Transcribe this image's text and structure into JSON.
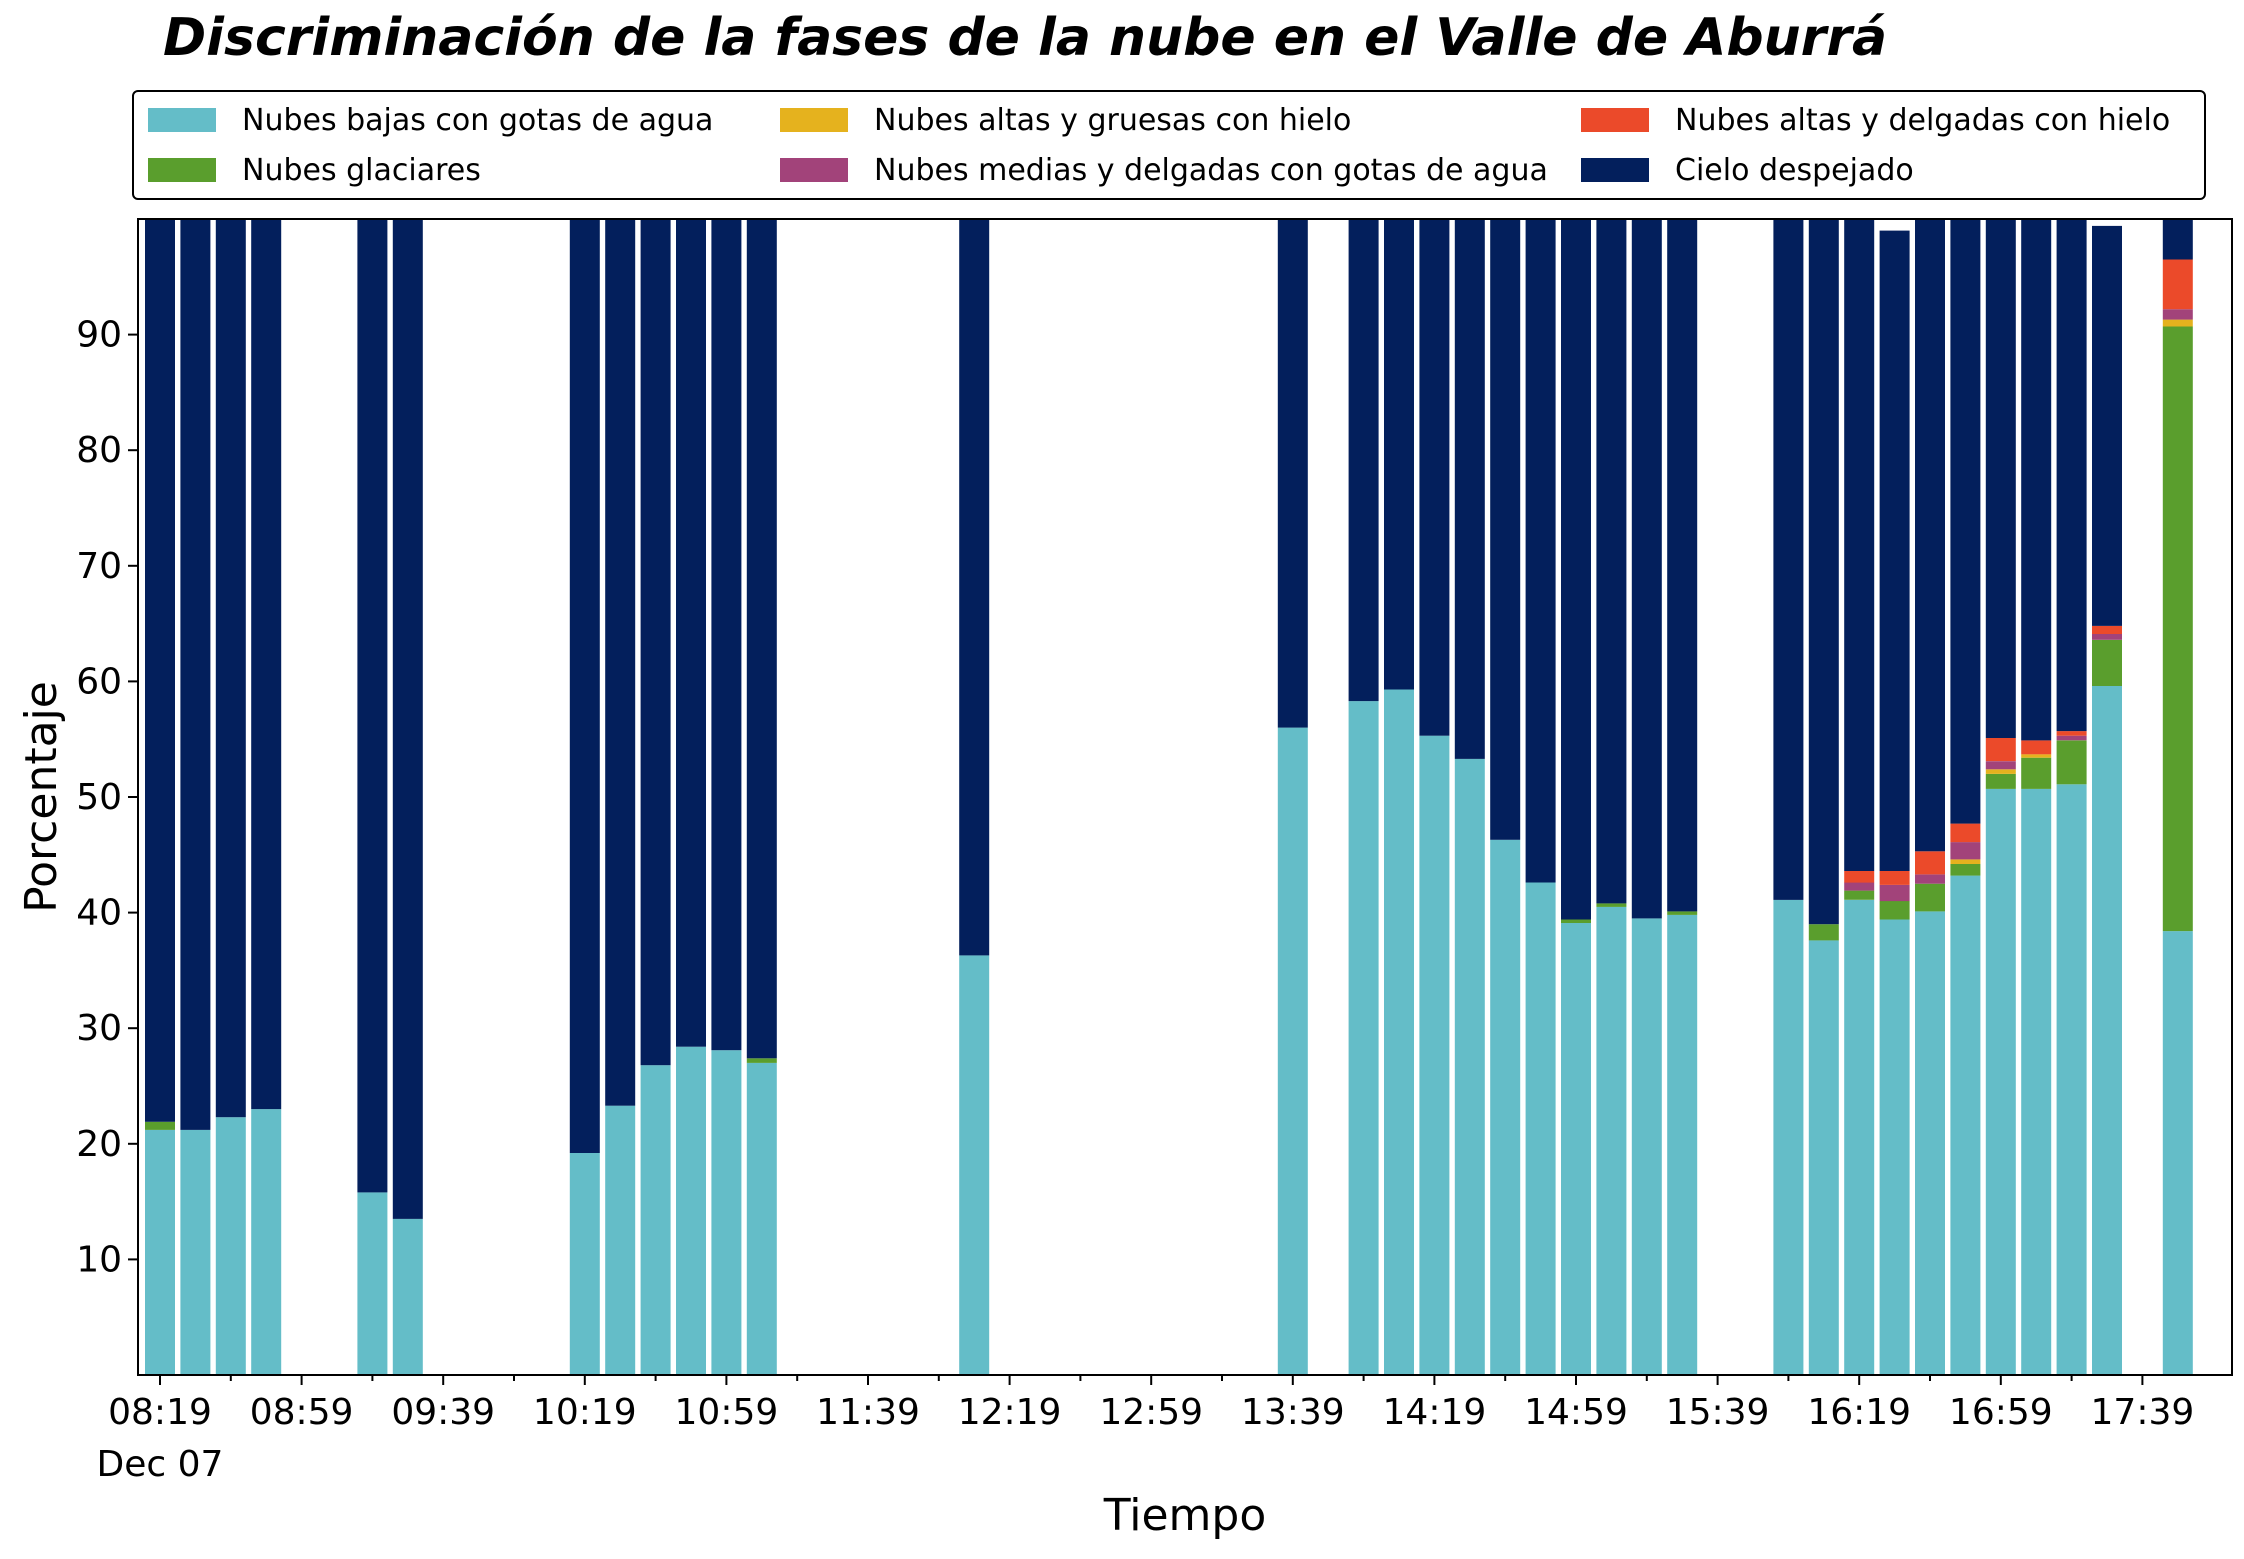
{
  "chart_data": {
    "type": "bar",
    "stacked": true,
    "title": "Discriminación de la fases de la nube en el Valle de Aburrá",
    "xlabel": "Tiempo",
    "ylabel": "Porcentaje",
    "ylim": [
      0,
      100
    ],
    "yticks": [
      10,
      20,
      30,
      40,
      50,
      60,
      70,
      80,
      90
    ],
    "x_major_ticks": [
      "08:19",
      "08:59",
      "09:39",
      "10:19",
      "10:59",
      "11:39",
      "12:19",
      "12:59",
      "13:39",
      "14:19",
      "14:59",
      "15:39",
      "16:19",
      "16:59",
      "17:39"
    ],
    "x_date_label": "Dec 07",
    "grid": false,
    "legend_position": "top",
    "slot_interval_minutes": 10,
    "slots": [
      "08:19",
      "08:29",
      "08:39",
      "08:49",
      "08:59",
      "09:09",
      "09:19",
      "09:29",
      "09:39",
      "09:49",
      "09:59",
      "10:09",
      "10:19",
      "10:29",
      "10:39",
      "10:49",
      "10:59",
      "11:09",
      "11:19",
      "11:29",
      "11:39",
      "11:49",
      "11:59",
      "12:09",
      "12:19",
      "12:29",
      "12:39",
      "12:49",
      "12:59",
      "13:09",
      "13:19",
      "13:29",
      "13:39",
      "13:49",
      "13:59",
      "14:09",
      "14:19",
      "14:29",
      "14:39",
      "14:49",
      "14:59",
      "15:09",
      "15:19",
      "15:29",
      "15:39",
      "15:49",
      "15:59",
      "16:09",
      "16:19",
      "16:29",
      "16:39",
      "16:49",
      "16:59",
      "17:09",
      "17:19",
      "17:29",
      "17:39",
      "17:49"
    ],
    "series": [
      {
        "name": "Nubes bajas con gotas de agua",
        "color": "#64BDC8",
        "values": [
          21.2,
          21.2,
          22.3,
          23.0,
          null,
          null,
          15.8,
          13.5,
          null,
          null,
          null,
          null,
          19.2,
          23.3,
          26.8,
          28.4,
          28.1,
          27.0,
          null,
          null,
          null,
          null,
          null,
          36.3,
          null,
          null,
          null,
          null,
          null,
          null,
          null,
          null,
          56.0,
          null,
          58.3,
          59.3,
          55.3,
          53.3,
          46.3,
          42.6,
          39.1,
          40.5,
          39.5,
          39.8,
          null,
          null,
          41.1,
          37.6,
          41.1,
          39.4,
          40.1,
          43.2,
          50.7,
          50.7,
          51.1,
          59.6,
          null,
          38.4
        ]
      },
      {
        "name": "Nubes glaciares",
        "color": "#5A9E2D",
        "values": [
          0.7,
          0,
          0,
          0,
          null,
          null,
          0,
          0,
          null,
          null,
          null,
          null,
          0,
          0,
          0,
          0,
          0,
          0.4,
          null,
          null,
          null,
          null,
          null,
          0,
          null,
          null,
          null,
          null,
          null,
          null,
          null,
          null,
          0,
          null,
          0,
          0,
          0,
          0,
          0,
          0,
          0.3,
          0.3,
          0,
          0.3,
          null,
          null,
          0,
          1.4,
          0.8,
          1.6,
          2.4,
          1.0,
          1.3,
          2.7,
          3.8,
          4.0,
          null,
          52.3
        ]
      },
      {
        "name": "Nubes altas y gruesas con hielo",
        "color": "#E5B21E",
        "values": [
          0,
          0,
          0,
          0,
          null,
          null,
          0,
          0,
          null,
          null,
          null,
          null,
          0,
          0,
          0,
          0,
          0,
          0,
          null,
          null,
          null,
          null,
          null,
          0,
          null,
          null,
          null,
          null,
          null,
          null,
          null,
          null,
          0,
          null,
          0,
          0,
          0,
          0,
          0,
          0,
          0,
          0,
          0,
          0,
          null,
          null,
          0,
          0,
          0,
          0,
          0,
          0.4,
          0.4,
          0.3,
          0,
          0,
          null,
          0.6
        ]
      },
      {
        "name": "Nubes medias y delgadas con gotas de agua",
        "color": "#A2437A",
        "values": [
          0,
          0,
          0,
          0,
          null,
          null,
          0,
          0,
          null,
          null,
          null,
          null,
          0,
          0,
          0,
          0,
          0,
          0,
          null,
          null,
          null,
          null,
          null,
          0,
          null,
          null,
          null,
          null,
          null,
          null,
          null,
          null,
          0,
          null,
          0,
          0,
          0,
          0,
          0,
          0,
          0,
          0,
          0,
          0,
          null,
          null,
          0,
          0,
          0.7,
          1.4,
          0.8,
          1.5,
          0.7,
          0,
          0.4,
          0.5,
          null,
          0.9
        ]
      },
      {
        "name": "Nubes altas y delgadas con hielo",
        "color": "#EB4A2A",
        "values": [
          0,
          0,
          0,
          0,
          null,
          null,
          0,
          0,
          null,
          null,
          null,
          null,
          0,
          0,
          0,
          0,
          0,
          0,
          null,
          null,
          null,
          null,
          null,
          0,
          null,
          null,
          null,
          null,
          null,
          null,
          null,
          null,
          0,
          null,
          0,
          0,
          0,
          0,
          0,
          0,
          0,
          0,
          0,
          0,
          null,
          null,
          0,
          0,
          1.0,
          1.2,
          2.0,
          1.6,
          2.0,
          1.2,
          0.4,
          0.7,
          null,
          4.3
        ]
      },
      {
        "name": "Cielo despejado",
        "color": "#031F5C",
        "values": [
          78.1,
          78.8,
          77.7,
          77.0,
          null,
          null,
          84.2,
          86.5,
          null,
          null,
          null,
          null,
          80.8,
          76.7,
          73.2,
          71.6,
          71.9,
          72.6,
          null,
          null,
          null,
          null,
          null,
          63.7,
          null,
          null,
          null,
          null,
          null,
          null,
          null,
          null,
          44.0,
          null,
          41.7,
          40.7,
          44.7,
          46.7,
          53.7,
          57.4,
          60.6,
          59.2,
          60.5,
          59.9,
          null,
          null,
          58.9,
          61.0,
          56.4,
          55.4,
          54.7,
          52.3,
          44.9,
          45.1,
          44.3,
          34.6,
          null,
          3.5
        ]
      }
    ]
  }
}
